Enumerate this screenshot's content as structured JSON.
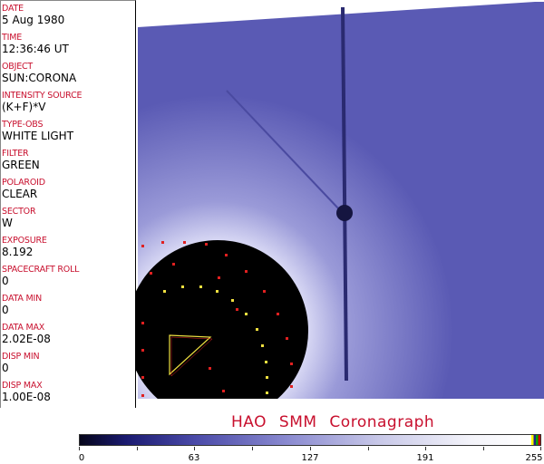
{
  "header_fields": [
    {
      "label": "DATE",
      "value": "5 Aug 1980"
    },
    {
      "label": "TIME",
      "value": "12:36:46 UT"
    },
    {
      "label": "OBJECT",
      "value": "SUN:CORONA"
    },
    {
      "label": "INTENSITY SOURCE",
      "value": "(K+F)*V"
    },
    {
      "label": "TYPE-OBS",
      "value": "WHITE LIGHT"
    },
    {
      "label": "FILTER",
      "value": "GREEN"
    },
    {
      "label": "POLAROID",
      "value": "CLEAR"
    },
    {
      "label": "SECTOR",
      "value": "W"
    },
    {
      "label": "EXPOSURE",
      "value": "8.192"
    },
    {
      "label": "SPACECRAFT ROLL",
      "value": "0"
    },
    {
      "label": "DATA MIN",
      "value": "0"
    },
    {
      "label": "DATA MAX",
      "value": "2.02E-08"
    },
    {
      "label": "DISP MIN",
      "value": "0"
    },
    {
      "label": "DISP MAX",
      "value": "1.00E-08"
    }
  ],
  "title": "HAO SMM Coronagraph",
  "colorbar": {
    "ticks": [
      "0",
      "63",
      "127",
      "191",
      "255"
    ],
    "min_color": "#05051a",
    "max_color": "#ffffff"
  },
  "colors": {
    "label": "#c8102e",
    "image": "#6c6cc0"
  }
}
